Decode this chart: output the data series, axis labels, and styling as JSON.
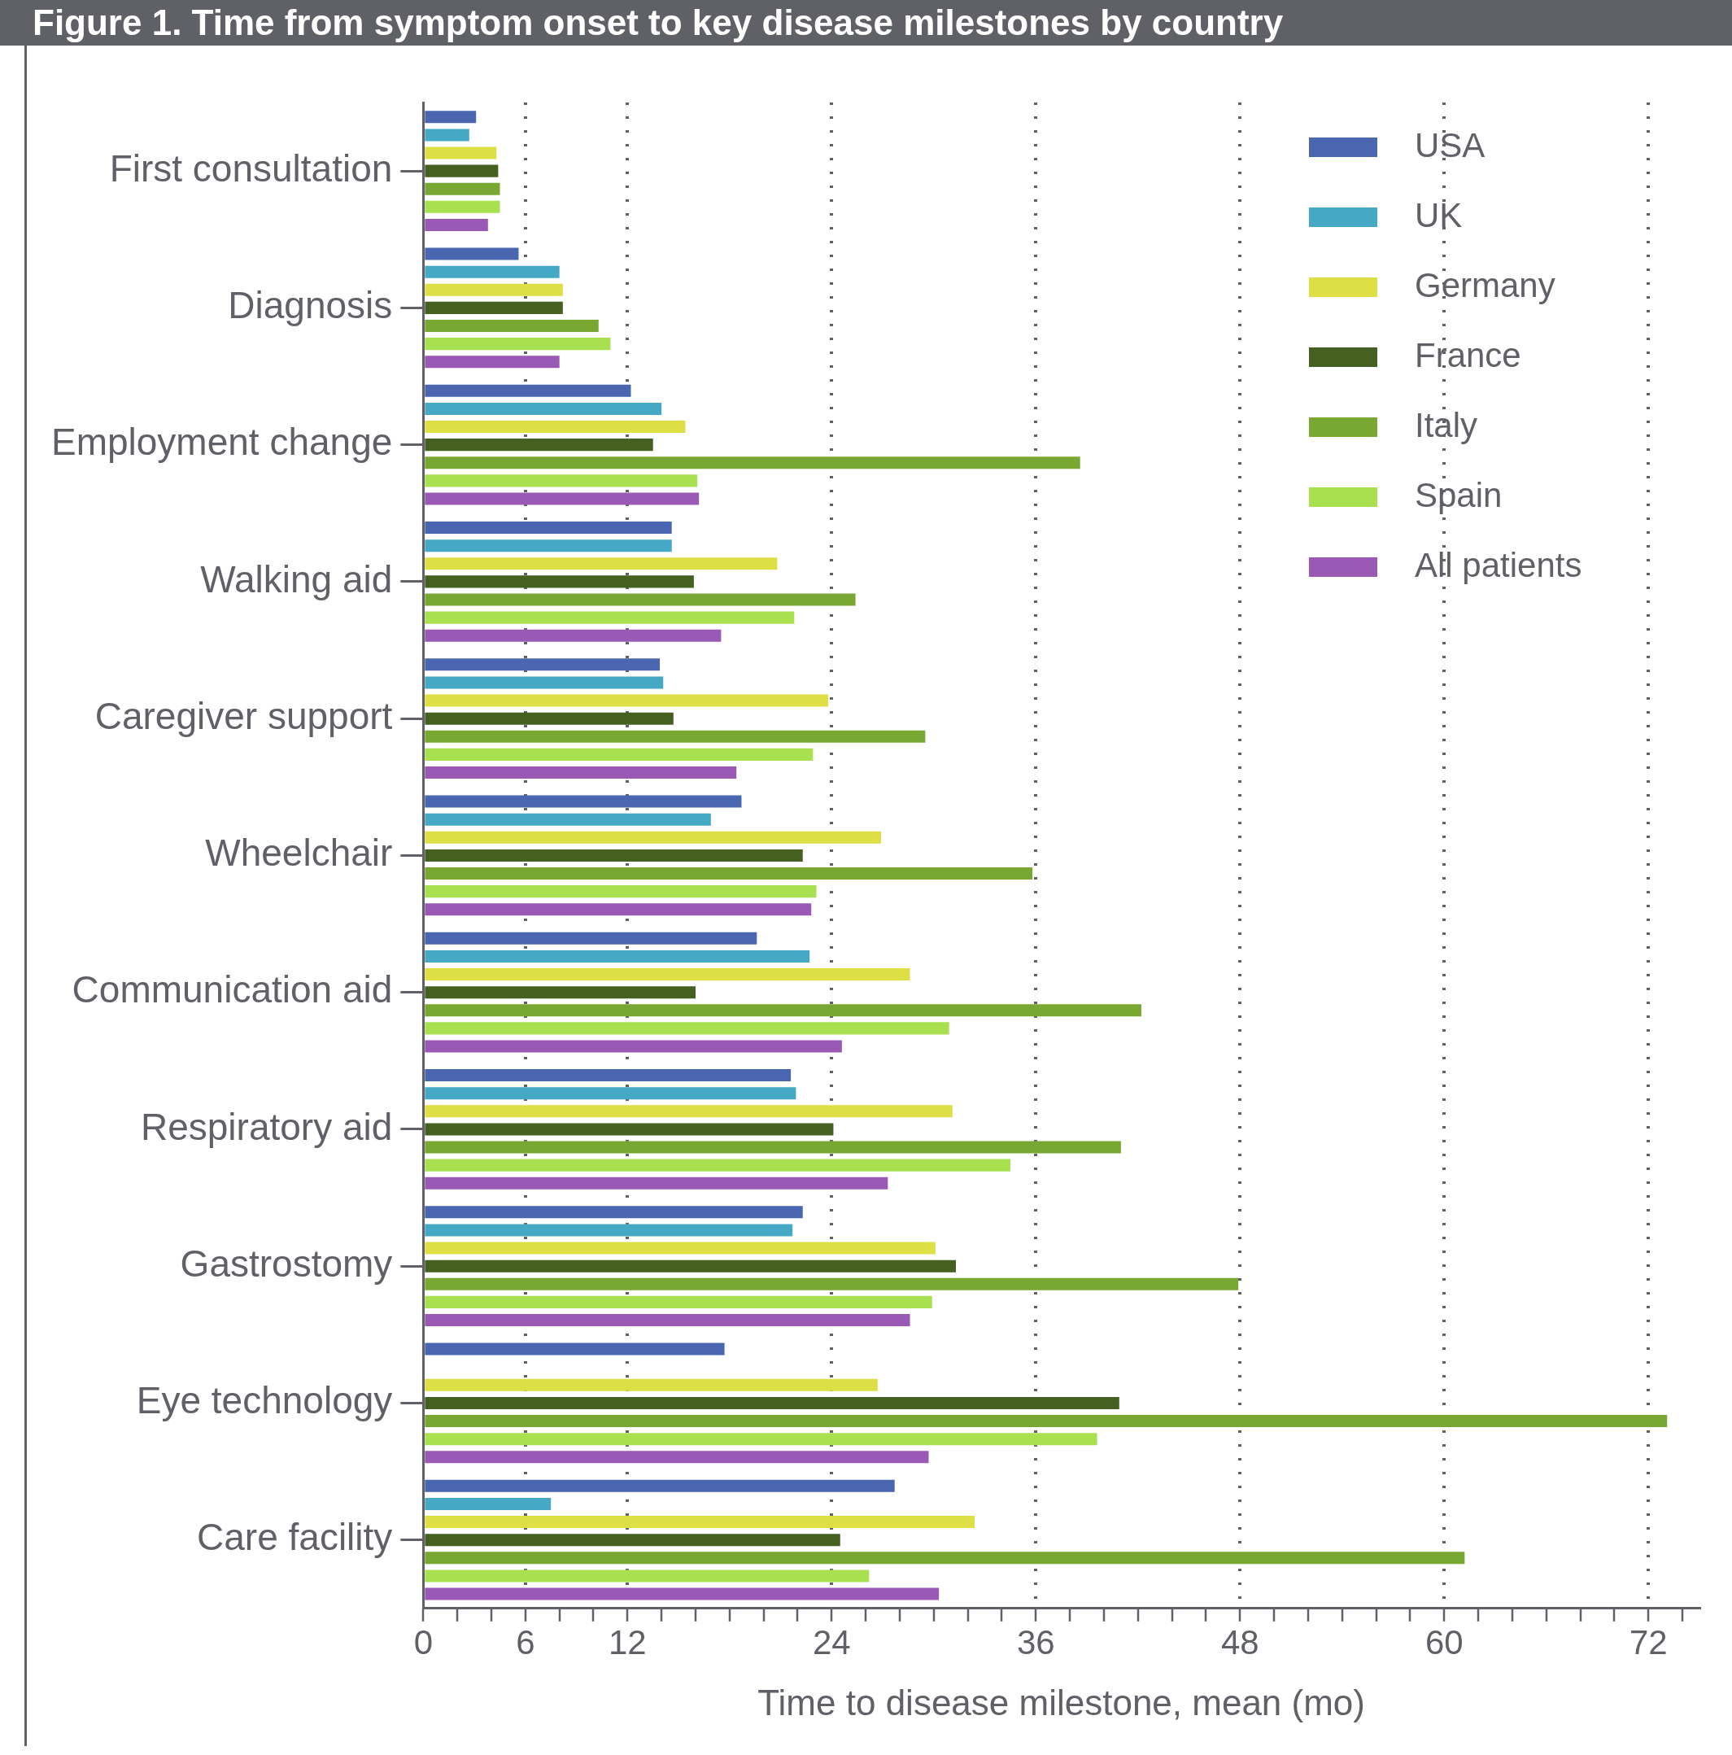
{
  "chart_data": {
    "type": "bar",
    "orientation": "horizontal",
    "title": "Figure 1. Time from symptom onset to key disease milestones by country",
    "xlabel": "Time to disease milestone, mean (mo)",
    "categories": [
      "First consultation",
      "Diagnosis",
      "Employment change",
      "Walking aid",
      "Caregiver support",
      "Wheelchair",
      "Communication aid",
      "Respiratory aid",
      "Gastrostomy",
      "Eye technology",
      "Care facility"
    ],
    "series": [
      {
        "name": "USA",
        "color": "#4a66b0",
        "values": [
          3.1,
          5.6,
          12.2,
          14.6,
          13.9,
          18.7,
          19.6,
          21.6,
          22.3,
          17.7,
          27.7
        ]
      },
      {
        "name": "UK",
        "color": "#45a8c4",
        "values": [
          2.7,
          8.0,
          14.0,
          14.6,
          14.1,
          16.9,
          22.7,
          21.9,
          21.7,
          null,
          7.5
        ]
      },
      {
        "name": "Germany",
        "color": "#dede45",
        "values": [
          4.3,
          8.2,
          15.4,
          20.8,
          23.8,
          26.9,
          28.6,
          31.1,
          30.1,
          26.7,
          32.4
        ]
      },
      {
        "name": "France",
        "color": "#456020",
        "values": [
          4.4,
          8.2,
          13.5,
          15.9,
          14.7,
          22.3,
          16.0,
          24.1,
          31.3,
          40.9,
          24.5
        ]
      },
      {
        "name": "Italy",
        "color": "#78a832",
        "values": [
          4.5,
          10.3,
          38.6,
          25.4,
          29.5,
          35.8,
          42.2,
          41.0,
          47.9,
          73.1,
          61.2
        ]
      },
      {
        "name": "Spain",
        "color": "#a8e050",
        "values": [
          4.5,
          11.0,
          16.1,
          21.8,
          22.9,
          23.1,
          30.9,
          34.5,
          29.9,
          39.6,
          26.2
        ]
      },
      {
        "name": "All patients",
        "color": "#9b59b6",
        "values": [
          3.8,
          8.0,
          16.2,
          17.5,
          18.4,
          22.8,
          24.6,
          27.3,
          28.6,
          29.7,
          30.3
        ]
      }
    ],
    "xlim": [
      0,
      75
    ],
    "xticks": [
      0,
      {
        "value": 2,
        "label": null
      },
      {
        "value": 4,
        "label": null
      },
      6,
      {
        "value": 8,
        "label": null
      },
      {
        "value": 10,
        "label": null
      },
      12,
      {
        "value": 14,
        "label": null
      },
      {
        "value": 16,
        "label": null
      },
      {
        "value": 18,
        "label": null
      },
      {
        "value": 20,
        "label": null
      },
      {
        "value": 22,
        "label": null
      },
      24,
      {
        "value": 26,
        "label": null
      },
      {
        "value": 28,
        "label": null
      },
      {
        "value": 30,
        "label": null
      },
      {
        "value": 32,
        "label": null
      },
      {
        "value": 34,
        "label": null
      },
      36,
      {
        "value": 38,
        "label": null
      },
      {
        "value": 40,
        "label": null
      },
      {
        "value": 42,
        "label": null
      },
      {
        "value": 44,
        "label": null
      },
      {
        "value": 46,
        "label": null
      },
      48,
      {
        "value": 50,
        "label": null
      },
      {
        "value": 52,
        "label": null
      },
      {
        "value": 54,
        "label": null
      },
      {
        "value": 56,
        "label": null
      },
      {
        "value": 58,
        "label": null
      },
      60,
      {
        "value": 62,
        "label": null
      },
      {
        "value": 64,
        "label": null
      },
      {
        "value": 66,
        "label": null
      },
      {
        "value": 68,
        "label": null
      },
      {
        "value": 70,
        "label": null
      },
      72,
      {
        "value": 74,
        "label": null
      }
    ],
    "grid": "x",
    "legend": "top right"
  }
}
